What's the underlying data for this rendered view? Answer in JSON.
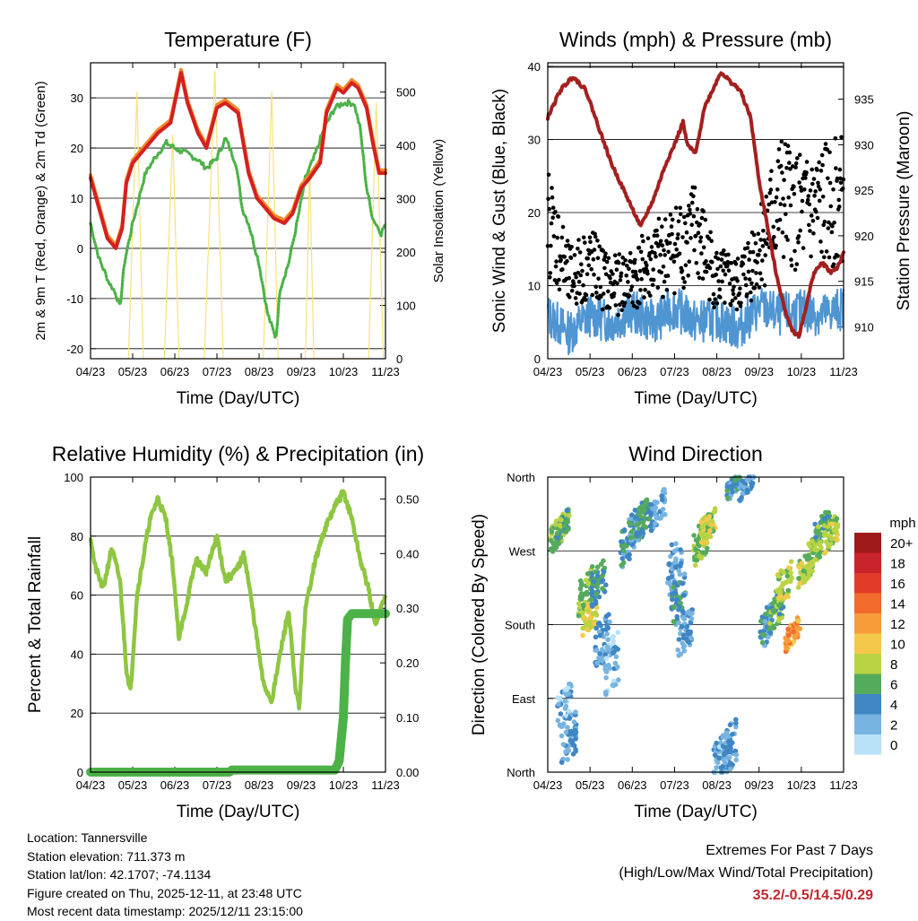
{
  "chart_data": [
    {
      "id": "temp",
      "type": "line",
      "title": "Temperature (F)",
      "xlabel": "Time (Day/UTC)",
      "ylabel": "2m & 9m T (Red, Orange) & 2m Td (Green)",
      "y2label": "Solar Insolation (Yellow)",
      "x_ticks": [
        "04/23",
        "05/23",
        "06/23",
        "07/23",
        "08/23",
        "09/23",
        "10/23",
        "11/23"
      ],
      "ylim": [
        -22,
        37
      ],
      "y_ticks": [
        -20,
        -10,
        0,
        10,
        20,
        30
      ],
      "y2lim": [
        0,
        555
      ],
      "y2_ticks": [
        0,
        100,
        200,
        300,
        400,
        500
      ],
      "series": [
        {
          "name": "2m T",
          "color": "#d42020",
          "values": [
            [
              0,
              14
            ],
            [
              0.2,
              8
            ],
            [
              0.4,
              2
            ],
            [
              0.6,
              0
            ],
            [
              0.75,
              4
            ],
            [
              0.85,
              13
            ],
            [
              1,
              17
            ],
            [
              1.3,
              20
            ],
            [
              1.6,
              23
            ],
            [
              1.9,
              25
            ],
            [
              2.05,
              31
            ],
            [
              2.15,
              35
            ],
            [
              2.3,
              29
            ],
            [
              2.55,
              23
            ],
            [
              2.75,
              20
            ],
            [
              3,
              28
            ],
            [
              3.2,
              29
            ],
            [
              3.5,
              27
            ],
            [
              3.75,
              15
            ],
            [
              3.95,
              10
            ],
            [
              4.15,
              8
            ],
            [
              4.35,
              6
            ],
            [
              4.6,
              5
            ],
            [
              4.8,
              7
            ],
            [
              5,
              12
            ],
            [
              5.2,
              14
            ],
            [
              5.45,
              17
            ],
            [
              5.6,
              27
            ],
            [
              5.85,
              32
            ],
            [
              6,
              31
            ],
            [
              6.2,
              33
            ],
            [
              6.35,
              32
            ],
            [
              6.55,
              28
            ],
            [
              6.7,
              21
            ],
            [
              6.85,
              15
            ],
            [
              7,
              15
            ]
          ]
        },
        {
          "name": "2m Td",
          "color": "#4cb248",
          "values": [
            [
              0,
              5
            ],
            [
              0.2,
              -2
            ],
            [
              0.45,
              -7
            ],
            [
              0.6,
              -9
            ],
            [
              0.7,
              -12
            ],
            [
              0.8,
              -3
            ],
            [
              1,
              5
            ],
            [
              1.3,
              15
            ],
            [
              1.6,
              19
            ],
            [
              1.8,
              21
            ],
            [
              2,
              20
            ],
            [
              2.25,
              19
            ],
            [
              2.5,
              18
            ],
            [
              2.75,
              16
            ],
            [
              3,
              18
            ],
            [
              3.2,
              22
            ],
            [
              3.45,
              17
            ],
            [
              3.6,
              8
            ],
            [
              3.75,
              5
            ],
            [
              4,
              -3
            ],
            [
              4.2,
              -13
            ],
            [
              4.4,
              -18
            ],
            [
              4.5,
              -8
            ],
            [
              4.7,
              -3
            ],
            [
              4.9,
              5
            ],
            [
              5.1,
              14
            ],
            [
              5.3,
              18
            ],
            [
              5.55,
              24
            ],
            [
              5.8,
              28
            ],
            [
              6,
              29
            ],
            [
              6.25,
              29
            ],
            [
              6.4,
              24
            ],
            [
              6.55,
              12
            ],
            [
              6.7,
              6
            ],
            [
              6.9,
              3
            ],
            [
              7,
              5
            ]
          ]
        }
      ],
      "insolation": [
        [
          0.9,
          0
        ],
        [
          1.1,
          500
        ],
        [
          1.25,
          0
        ],
        [
          1.75,
          0
        ],
        [
          1.95,
          420
        ],
        [
          2.1,
          0
        ],
        [
          2.7,
          0
        ],
        [
          2.95,
          540
        ],
        [
          3.15,
          0
        ],
        [
          4.1,
          0
        ],
        [
          4.3,
          500
        ],
        [
          4.45,
          0
        ],
        [
          5.1,
          0
        ],
        [
          5.2,
          360
        ],
        [
          5.3,
          0
        ],
        [
          6.6,
          0
        ],
        [
          6.78,
          480
        ],
        [
          6.95,
          0
        ]
      ]
    },
    {
      "id": "wind",
      "type": "scatter",
      "title": "Winds (mph) & Pressure (mb)",
      "xlabel": "Time (Day/UTC)",
      "ylabel": "Sonic Wind & Gust (Blue, Black)",
      "y2label": "Station Pressure (Maroon)",
      "x_ticks": [
        "04/23",
        "05/23",
        "06/23",
        "07/23",
        "08/23",
        "09/23",
        "10/23",
        "11/23"
      ],
      "ylim": [
        0,
        40.5
      ],
      "y_ticks": [
        0,
        10,
        20,
        30,
        40
      ],
      "y2lim": [
        906.5,
        939
      ],
      "y2_ticks": [
        910,
        915,
        920,
        925,
        930,
        935
      ],
      "pressure": [
        [
          0,
          933
        ],
        [
          0.3,
          936
        ],
        [
          0.6,
          937.5
        ],
        [
          0.9,
          936
        ],
        [
          1.2,
          932
        ],
        [
          1.5,
          928
        ],
        [
          1.8,
          925
        ],
        [
          2,
          923
        ],
        [
          2.2,
          921
        ],
        [
          2.5,
          924
        ],
        [
          2.8,
          928
        ],
        [
          3,
          930
        ],
        [
          3.2,
          932.5
        ],
        [
          3.3,
          930
        ],
        [
          3.5,
          929
        ],
        [
          3.7,
          934
        ],
        [
          3.9,
          936
        ],
        [
          4.1,
          938
        ],
        [
          4.3,
          937
        ],
        [
          4.55,
          936
        ],
        [
          4.8,
          933
        ],
        [
          5,
          926
        ],
        [
          5.2,
          921
        ],
        [
          5.4,
          916
        ],
        [
          5.6,
          912
        ],
        [
          5.8,
          909.5
        ],
        [
          5.95,
          909
        ],
        [
          6.1,
          912
        ],
        [
          6.3,
          916
        ],
        [
          6.5,
          917
        ],
        [
          6.7,
          916
        ],
        [
          6.85,
          916.5
        ],
        [
          7,
          918
        ]
      ],
      "sonic_mean": [
        [
          0,
          6
        ],
        [
          0.5,
          3.5
        ],
        [
          1,
          6
        ],
        [
          1.5,
          5
        ],
        [
          2,
          6.5
        ],
        [
          2.5,
          5
        ],
        [
          3,
          7
        ],
        [
          3.5,
          5
        ],
        [
          4,
          5.5
        ],
        [
          4.5,
          4
        ],
        [
          5,
          7
        ],
        [
          5.5,
          6
        ],
        [
          6,
          6.5
        ],
        [
          6.5,
          6
        ],
        [
          7,
          7
        ]
      ],
      "gust_mean": [
        [
          0,
          18
        ],
        [
          0.5,
          10
        ],
        [
          1,
          12
        ],
        [
          1.5,
          9
        ],
        [
          2,
          10
        ],
        [
          2.5,
          12
        ],
        [
          3,
          14
        ],
        [
          3.5,
          16
        ],
        [
          4,
          10
        ],
        [
          4.5,
          9
        ],
        [
          5,
          14
        ],
        [
          5.5,
          20
        ],
        [
          6,
          18
        ],
        [
          6.5,
          19
        ],
        [
          7,
          20
        ]
      ]
    },
    {
      "id": "rh",
      "type": "line",
      "title": "Relative Humidity (%) & Precipitation (in)",
      "xlabel": "Time (Day/UTC)",
      "ylabel": "Percent & Total Rainfall",
      "x_ticks": [
        "04/23",
        "05/23",
        "06/23",
        "07/23",
        "08/23",
        "09/23",
        "10/23",
        "11/23"
      ],
      "ylim": [
        0,
        100
      ],
      "y_ticks": [
        0,
        20,
        40,
        60,
        80,
        100
      ],
      "y2lim": [
        0,
        0.54
      ],
      "y2_ticks": [
        "0.00",
        "0.10",
        "0.20",
        "0.30",
        "0.40",
        "0.50"
      ],
      "series": [
        {
          "name": "RH",
          "color": "#8ec641",
          "values": [
            [
              0,
              80
            ],
            [
              0.1,
              70
            ],
            [
              0.3,
              62
            ],
            [
              0.5,
              76
            ],
            [
              0.7,
              65
            ],
            [
              0.85,
              35
            ],
            [
              0.95,
              27
            ],
            [
              1.1,
              60
            ],
            [
              1.4,
              85
            ],
            [
              1.6,
              93
            ],
            [
              1.8,
              85
            ],
            [
              1.95,
              70
            ],
            [
              2.1,
              45
            ],
            [
              2.25,
              55
            ],
            [
              2.5,
              72
            ],
            [
              2.75,
              68
            ],
            [
              3,
              80
            ],
            [
              3.2,
              65
            ],
            [
              3.45,
              68
            ],
            [
              3.65,
              74
            ],
            [
              3.9,
              50
            ],
            [
              4.1,
              30
            ],
            [
              4.3,
              24
            ],
            [
              4.5,
              40
            ],
            [
              4.7,
              55
            ],
            [
              4.85,
              30
            ],
            [
              4.95,
              22
            ],
            [
              5.1,
              55
            ],
            [
              5.3,
              70
            ],
            [
              5.55,
              82
            ],
            [
              5.8,
              90
            ],
            [
              6,
              95
            ],
            [
              6.2,
              86
            ],
            [
              6.4,
              72
            ],
            [
              6.6,
              62
            ],
            [
              6.75,
              50
            ],
            [
              6.9,
              56
            ],
            [
              7,
              60
            ]
          ]
        },
        {
          "name": "Precip",
          "color": "#4cb248",
          "values": [
            [
              0,
              0
            ],
            [
              3.3,
              0
            ],
            [
              3.35,
              0.004
            ],
            [
              5.8,
              0.004
            ],
            [
              5.9,
              0.02
            ],
            [
              6,
              0.1
            ],
            [
              6.05,
              0.2
            ],
            [
              6.1,
              0.28
            ],
            [
              6.2,
              0.29
            ],
            [
              7,
              0.29
            ]
          ]
        }
      ]
    },
    {
      "id": "wdir",
      "type": "scatter",
      "title": "Wind Direction",
      "xlabel": "Time (Day/UTC)",
      "ylabel": "Direction (Colored By Speed)",
      "x_ticks": [
        "04/23",
        "05/23",
        "06/23",
        "07/23",
        "08/23",
        "09/23",
        "10/23",
        "11/23"
      ],
      "y_ticks": [
        "North",
        "East",
        "South",
        "West",
        "North"
      ],
      "ylim": [
        0,
        360
      ],
      "clusters": [
        [
          0.2,
          290,
          15,
          7
        ],
        [
          0.35,
          300,
          12,
          6
        ],
        [
          0.4,
          80,
          20,
          2
        ],
        [
          0.5,
          40,
          25,
          3
        ],
        [
          0.9,
          220,
          20,
          7
        ],
        [
          1,
          190,
          15,
          9
        ],
        [
          1.2,
          230,
          20,
          5
        ],
        [
          1.3,
          160,
          25,
          3
        ],
        [
          1.5,
          130,
          30,
          2
        ],
        [
          1.9,
          280,
          20,
          4
        ],
        [
          2.1,
          300,
          20,
          4
        ],
        [
          2.25,
          310,
          15,
          5
        ],
        [
          2.6,
          320,
          15,
          3
        ],
        [
          3,
          250,
          30,
          3
        ],
        [
          3.1,
          210,
          25,
          4
        ],
        [
          3.25,
          170,
          20,
          3
        ],
        [
          3.6,
          280,
          20,
          7
        ],
        [
          3.8,
          300,
          15,
          8
        ],
        [
          4.1,
          20,
          20,
          2
        ],
        [
          4.3,
          30,
          25,
          3
        ],
        [
          4.4,
          350,
          10,
          4
        ],
        [
          4.7,
          350,
          10,
          3
        ],
        [
          5.2,
          180,
          20,
          4
        ],
        [
          5.4,
          200,
          20,
          6
        ],
        [
          5.6,
          230,
          20,
          8
        ],
        [
          5.8,
          170,
          12,
          12
        ],
        [
          6.1,
          250,
          15,
          8
        ],
        [
          6.3,
          270,
          15,
          7
        ],
        [
          6.5,
          300,
          12,
          6
        ],
        [
          6.7,
          290,
          15,
          8
        ]
      ]
    }
  ],
  "legend": {
    "title": "mph",
    "labels": [
      "20+",
      "18",
      "16",
      "14",
      "12",
      "10",
      "8",
      "6",
      "4",
      "2",
      "0"
    ],
    "colors": [
      "#9e1a1a",
      "#c9232b",
      "#e23b2a",
      "#f26b2d",
      "#f79c3a",
      "#f4c84a",
      "#b9d443",
      "#55ab5c",
      "#3f86c3",
      "#77b4e2",
      "#b9e1f7"
    ]
  },
  "footer": {
    "location": "Location: Tannersville",
    "elevation": "Station elevation: 711.373 m",
    "latlon": "Station lat/lon: 42.1707; -74.1134",
    "created": "Figure created on Thu, 2025-12-11, at 23:48 UTC",
    "recent": "Most recent data timestamp: 2025/12/11 23:15:00",
    "extremes_title": "Extremes For Past 7 Days",
    "extremes_desc": "(High/Low/Max Wind/Total Precipitation)",
    "extremes_values": "35.2/-0.5/14.5/0.29"
  }
}
